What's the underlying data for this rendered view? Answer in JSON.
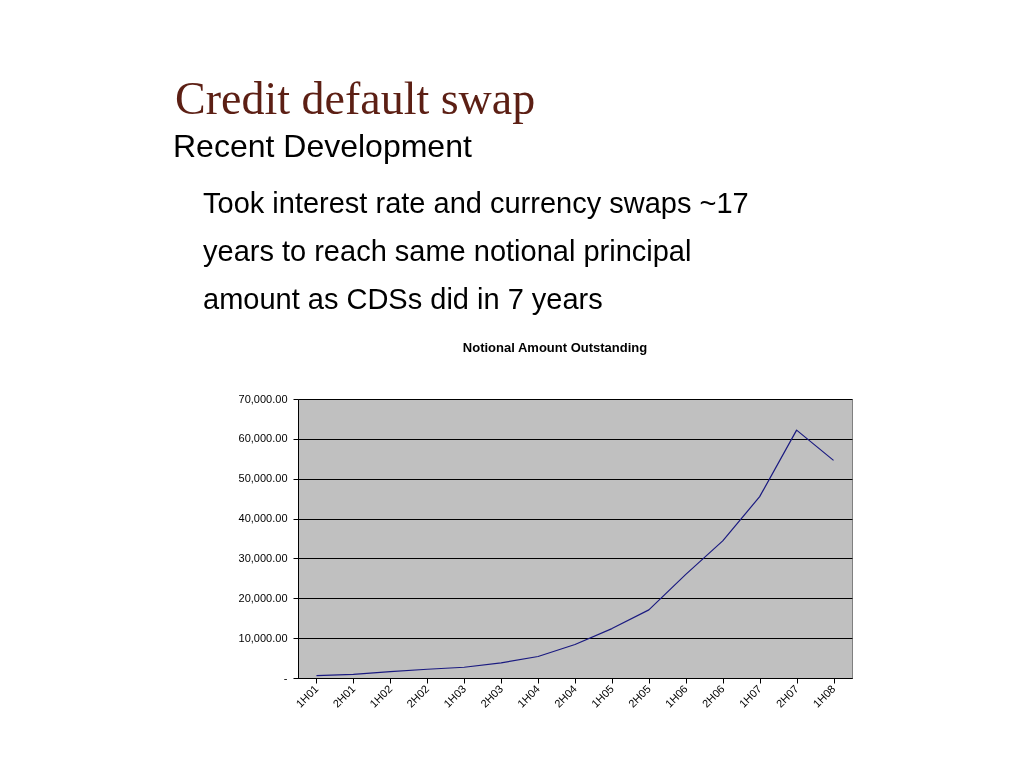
{
  "chart_data": {
    "type": "line",
    "title": "Notional Amount Outstanding",
    "annotations": [
      "Credit default swap",
      "Recent Development",
      "Took interest rate and currency swaps ~17 years to reach same notional principal amount as CDSs did in 7 years"
    ],
    "categories": [
      "1H01",
      "2H01",
      "1H02",
      "2H02",
      "1H03",
      "2H03",
      "1H04",
      "2H04",
      "1H05",
      "2H05",
      "1H06",
      "2H06",
      "1H07",
      "2H07",
      "1H08"
    ],
    "series": [
      {
        "color": "#1a1a80",
        "values": [
          600,
          900,
          1600,
          2200,
          2700,
          3800,
          5400,
          8400,
          12400,
          17100,
          26000,
          34400,
          45500,
          62200,
          54600
        ]
      }
    ],
    "ylim": [
      0,
      70000
    ],
    "yticks": [
      {
        "value": 0,
        "label": "-"
      },
      {
        "value": 10000,
        "label": "10,000.00"
      },
      {
        "value": 20000,
        "label": "20,000.00"
      },
      {
        "value": 30000,
        "label": "30,000.00"
      },
      {
        "value": 40000,
        "label": "40,000.00"
      },
      {
        "value": 50000,
        "label": "50,000.00"
      },
      {
        "value": 60000,
        "label": "60,000.00"
      },
      {
        "value": 70000,
        "label": "70,000.00"
      }
    ],
    "grid": "y",
    "marker": "none",
    "line_style": "solid"
  }
}
